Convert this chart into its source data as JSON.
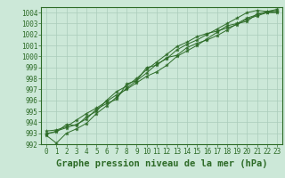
{
  "xlabel": "Graphe pression niveau de la mer (hPa)",
  "x_values": [
    0,
    1,
    2,
    3,
    4,
    5,
    6,
    7,
    8,
    9,
    10,
    11,
    12,
    13,
    14,
    15,
    16,
    17,
    18,
    19,
    20,
    21,
    22,
    23
  ],
  "series": [
    [
      992.8,
      992.1,
      993.0,
      993.4,
      993.9,
      994.8,
      995.5,
      996.3,
      997.1,
      997.8,
      998.5,
      999.3,
      999.8,
      1000.6,
      1001.1,
      1001.5,
      1002.0,
      1002.5,
      1003.0,
      1003.5,
      1004.0,
      1004.2,
      1004.1,
      1004.3
    ],
    [
      993.2,
      993.3,
      993.6,
      994.2,
      994.8,
      995.3,
      995.9,
      996.5,
      997.0,
      997.6,
      998.2,
      998.6,
      999.2,
      1000.0,
      1000.5,
      1001.0,
      1001.6,
      1002.2,
      1002.8,
      1003.0,
      1003.5,
      1003.8,
      1004.1,
      1004.2
    ],
    [
      993.0,
      993.1,
      993.8,
      993.7,
      994.5,
      995.0,
      996.0,
      996.8,
      997.3,
      998.0,
      998.8,
      999.5,
      1000.2,
      1000.9,
      1001.3,
      1001.8,
      1002.1,
      1002.3,
      1002.6,
      1002.9,
      1003.4,
      1003.7,
      1004.0,
      1004.0
    ],
    [
      992.9,
      993.2,
      993.5,
      993.8,
      994.3,
      995.2,
      995.7,
      996.1,
      997.5,
      997.8,
      999.0,
      999.2,
      999.9,
      1000.1,
      1000.8,
      1001.2,
      1001.5,
      1001.9,
      1002.4,
      1003.0,
      1003.2,
      1003.9,
      1004.0,
      1004.1
    ]
  ],
  "line_color": "#2d6b27",
  "bg_color": "#cce8d8",
  "grid_color": "#aaccbb",
  "ylim": [
    992,
    1004.5
  ],
  "yticks": [
    992,
    993,
    994,
    995,
    996,
    997,
    998,
    999,
    1000,
    1001,
    1002,
    1003,
    1004
  ],
  "xticks": [
    0,
    1,
    2,
    3,
    4,
    5,
    6,
    7,
    8,
    9,
    10,
    11,
    12,
    13,
    14,
    15,
    16,
    17,
    18,
    19,
    20,
    21,
    22,
    23
  ],
  "tick_fontsize": 5.5,
  "xlabel_fontsize": 7.5,
  "xlabel_fontweight": "bold"
}
